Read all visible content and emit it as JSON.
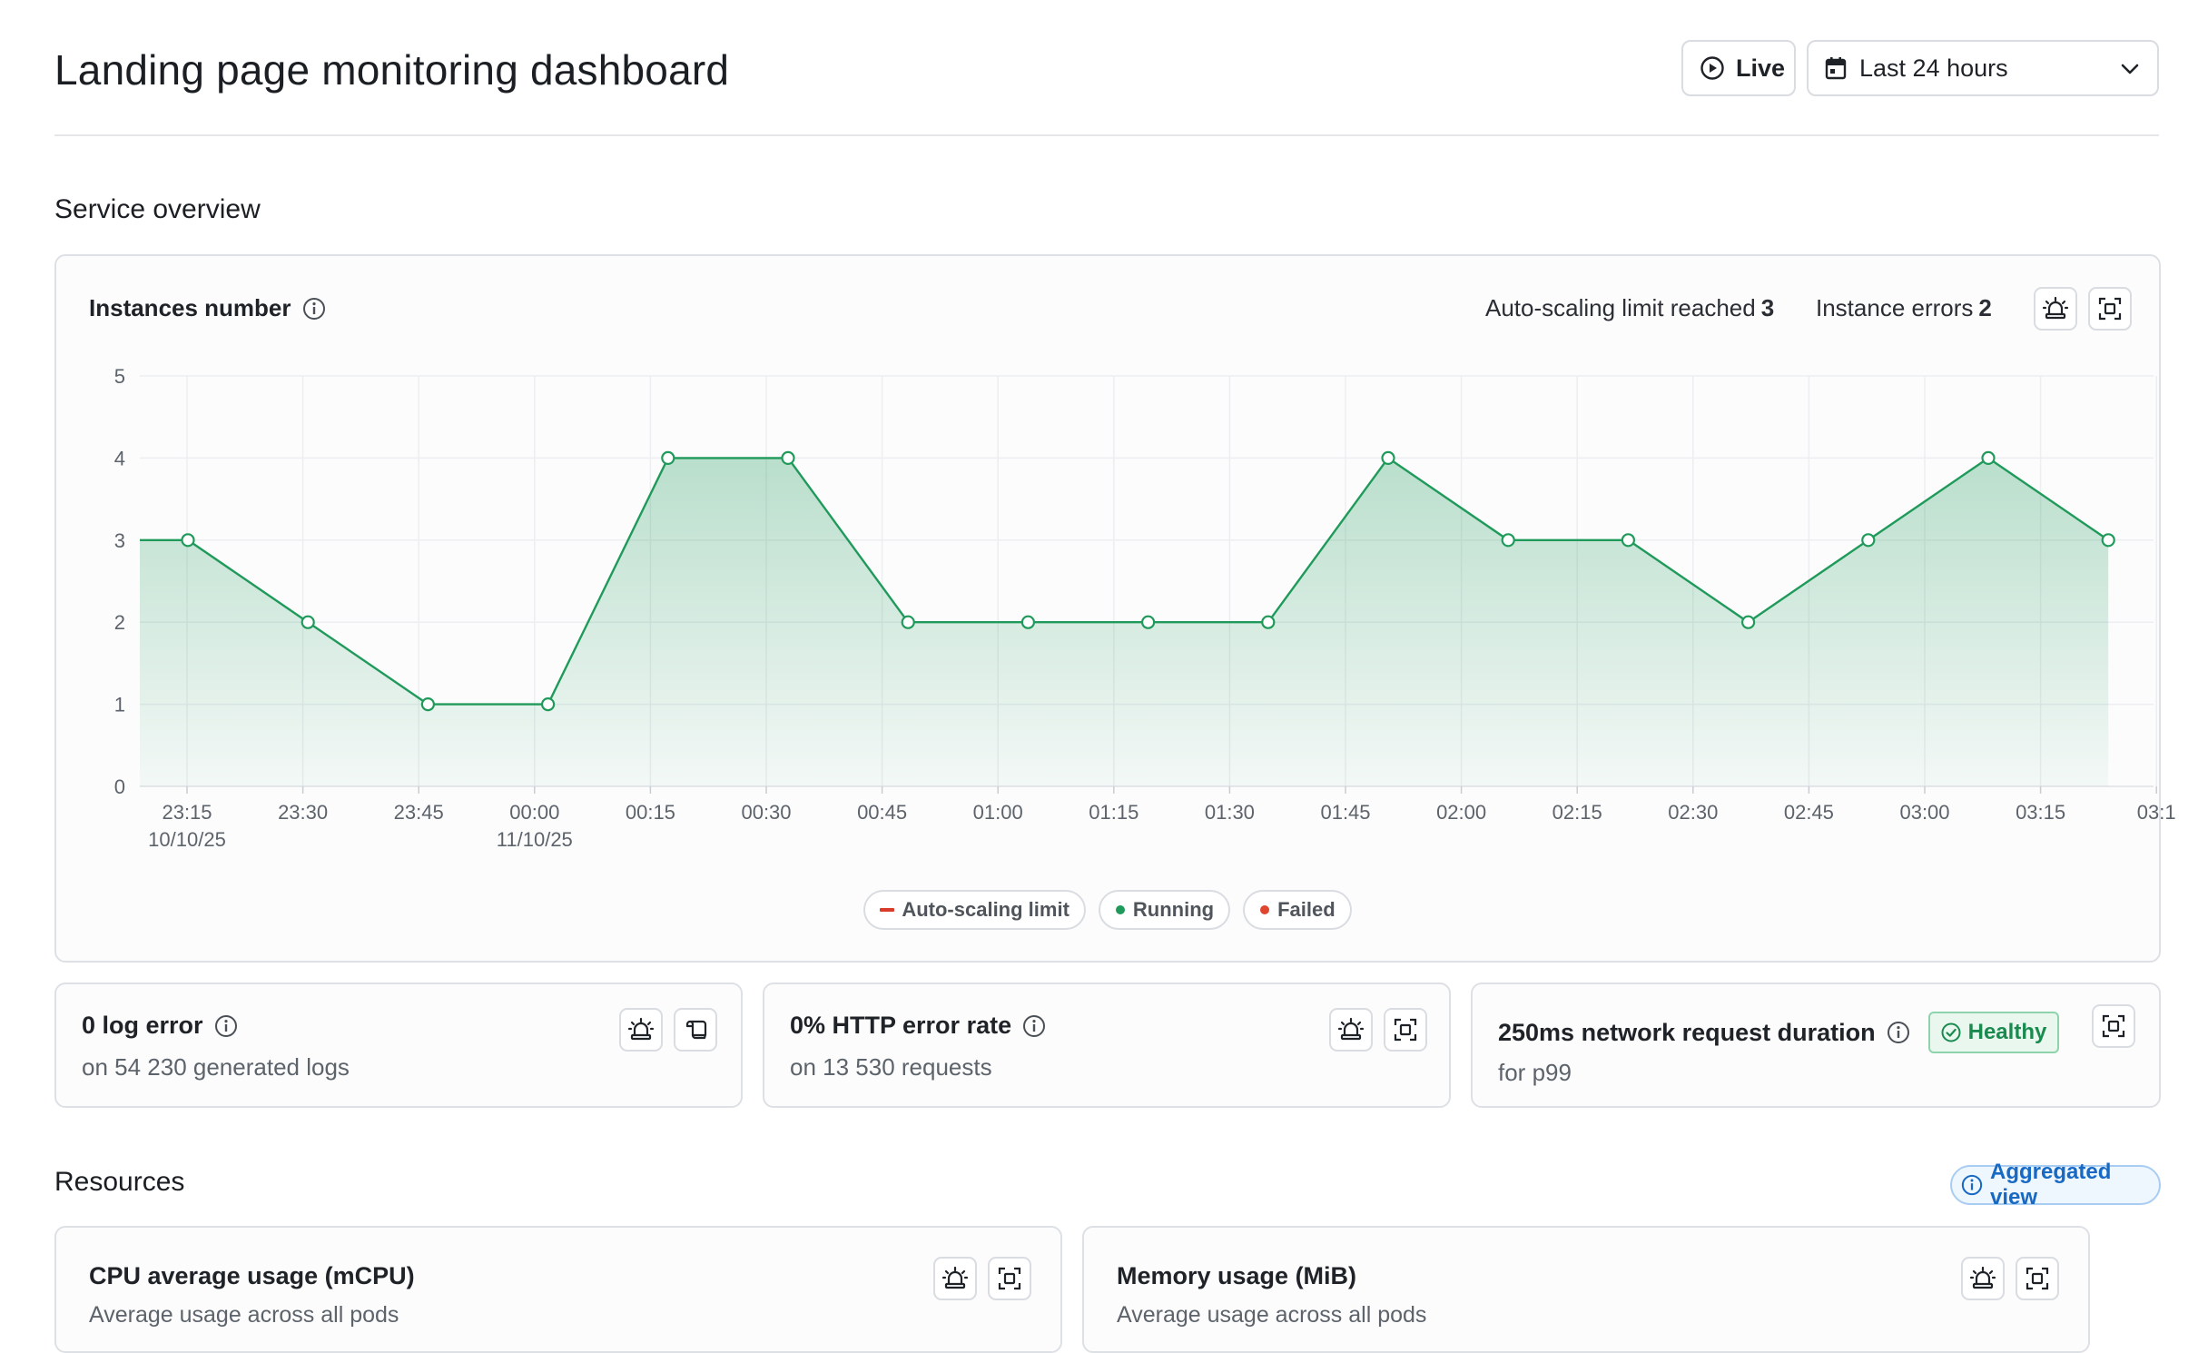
{
  "header": {
    "title": "Landing page monitoring dashboard",
    "live_label": "Live",
    "range_label": "Last 24 hours"
  },
  "service_overview": {
    "title": "Service overview",
    "instances_card": {
      "title": "Instances number",
      "autoscaling_label": "Auto-scaling limit reached",
      "autoscaling_value": "3",
      "errors_label": "Instance errors",
      "errors_value": "2",
      "legend": [
        {
          "label": "Auto-scaling limit",
          "color": "#d93b2b",
          "icon": "dash"
        },
        {
          "label": "Running",
          "color": "#1f9a5a",
          "icon": "dot"
        },
        {
          "label": "Failed",
          "color": "#e0452f",
          "icon": "dot"
        }
      ]
    }
  },
  "chart_data": {
    "type": "area",
    "title": "Instances number",
    "ylim": [
      0,
      5
    ],
    "yticks": [
      "0",
      "1",
      "2",
      "3",
      "4",
      "5"
    ],
    "x_ticks": [
      {
        "time": "23:15",
        "date": "10/10/25"
      },
      {
        "time": "23:30",
        "date": ""
      },
      {
        "time": "23:45",
        "date": ""
      },
      {
        "time": "00:00",
        "date": "11/10/25"
      },
      {
        "time": "00:15",
        "date": ""
      },
      {
        "time": "00:30",
        "date": ""
      },
      {
        "time": "00:45",
        "date": ""
      },
      {
        "time": "01:00",
        "date": ""
      },
      {
        "time": "01:15",
        "date": ""
      },
      {
        "time": "01:30",
        "date": ""
      },
      {
        "time": "01:45",
        "date": ""
      },
      {
        "time": "02:00",
        "date": ""
      },
      {
        "time": "02:15",
        "date": ""
      },
      {
        "time": "02:30",
        "date": ""
      },
      {
        "time": "02:45",
        "date": ""
      },
      {
        "time": "03:00",
        "date": ""
      },
      {
        "time": "03:15",
        "date": ""
      },
      {
        "time": "03:1",
        "date": ""
      }
    ],
    "series": [
      {
        "name": "Running",
        "color": "#1f9a5a",
        "start_value": 3,
        "points": [
          3,
          2,
          1,
          1,
          4,
          4,
          2,
          2,
          2,
          2,
          4,
          3,
          3,
          2,
          3,
          4,
          3
        ]
      }
    ],
    "grid": true,
    "legend_position": "bottom-center"
  },
  "metrics": [
    {
      "title": "0 log error",
      "subtitle": "on 54 230 generated logs",
      "has_info": true
    },
    {
      "title": "0% HTTP error rate",
      "subtitle": "on 13 530 requests",
      "has_info": true
    },
    {
      "title": "250ms network request duration",
      "subtitle": "for p99",
      "has_info": true,
      "badge": "Healthy"
    }
  ],
  "resources": {
    "title": "Resources",
    "aggregated_label": "Aggregated view",
    "cards": [
      {
        "title": "CPU average usage (mCPU)",
        "subtitle": "Average usage across all pods"
      },
      {
        "title": "Memory usage (MiB)",
        "subtitle": "Average usage across all pods"
      }
    ]
  },
  "colors": {
    "accent_green": "#1f9a5a",
    "healthy_bg": "#e9f7ef",
    "link_blue": "#1769c4",
    "border": "#dde0e4"
  }
}
